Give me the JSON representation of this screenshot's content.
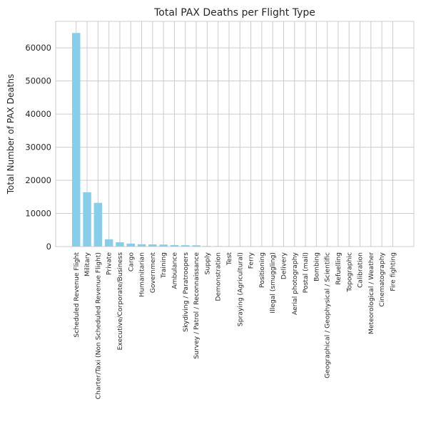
{
  "chart_data": {
    "type": "bar",
    "title": "Total PAX Deaths per Flight Type",
    "xlabel": "",
    "ylabel": "Total Number of PAX Deaths",
    "ylim": [
      0,
      68000
    ],
    "yticks": [
      0,
      10000,
      20000,
      30000,
      40000,
      50000,
      60000
    ],
    "grid": true,
    "bar_color": "#87CEEB",
    "categories": [
      "Scheduled Revenue Flight",
      "Military",
      "Charter/Taxi (Non Scheduled Revenue Flight)",
      "Private",
      "Executive/Corporate/Business",
      "Cargo",
      "Humanitarian",
      "Government",
      "Training",
      "Ambulance",
      "Skydiving / Paratroopers",
      "Survey / Patrol / Reconnaissance",
      "Supply",
      "Demonstration",
      "Test",
      "Spraying (Agricultural)",
      "Ferry",
      "Positioning",
      "Illegal (smuggling)",
      "Delivery",
      "Aerial photography",
      "Postal (mail)",
      "Bombing",
      "Geographical / Geophysical / Scientific",
      "Refuelling",
      "Topographic",
      "Calibration",
      "Meteorological / Weather",
      "Cinematography",
      "Fire fighting"
    ],
    "values": [
      64500,
      16400,
      13200,
      2200,
      1300,
      900,
      700,
      650,
      600,
      450,
      400,
      380,
      150,
      130,
      110,
      90,
      70,
      60,
      50,
      40,
      30,
      25,
      20,
      15,
      12,
      10,
      8,
      6,
      4,
      2
    ]
  }
}
